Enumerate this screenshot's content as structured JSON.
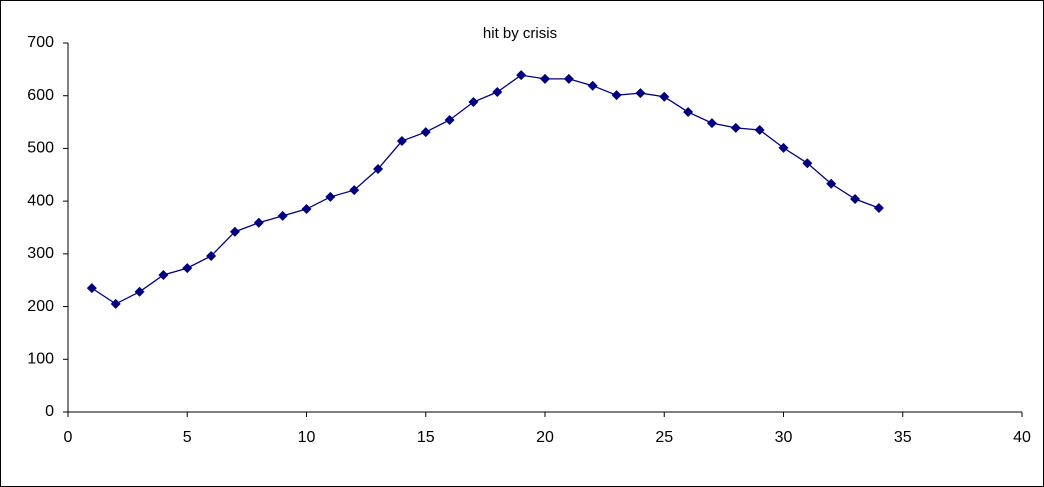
{
  "chart_data": {
    "type": "line",
    "title": "hit by crisis",
    "x": [
      1,
      2,
      3,
      4,
      5,
      6,
      7,
      8,
      9,
      10,
      11,
      12,
      13,
      14,
      15,
      16,
      17,
      18,
      19,
      20,
      21,
      22,
      23,
      24,
      25,
      26,
      27,
      28,
      29,
      30,
      31,
      32,
      33,
      34
    ],
    "series": [
      {
        "name": null,
        "color": "#000080",
        "values": [
          235,
          205,
          228,
          260,
          273,
          296,
          342,
          359,
          372,
          385,
          408,
          421,
          461,
          514,
          531,
          554,
          588,
          607,
          639,
          632,
          632,
          619,
          601,
          605,
          598,
          569,
          548,
          539,
          535,
          501,
          472,
          433,
          404,
          387
        ]
      }
    ],
    "xlim": [
      0,
      40
    ],
    "xticks": [
      0,
      5,
      10,
      15,
      20,
      25,
      30,
      35,
      40
    ],
    "ylim": [
      0,
      700
    ],
    "yticks": [
      0,
      100,
      200,
      300,
      400,
      500,
      600,
      700
    ],
    "marker": "diamond"
  }
}
